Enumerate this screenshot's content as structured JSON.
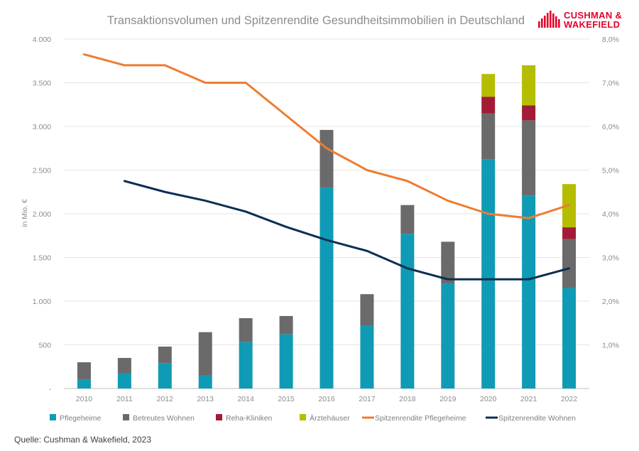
{
  "chart_data": {
    "type": "bar",
    "title": "Transaktionsvolumen und Spitzenrendite Gesundheitsimmobilien in Deutschland",
    "ylabel": "in Mio. €",
    "categories": [
      "2010",
      "2011",
      "2012",
      "2013",
      "2014",
      "2015",
      "2016",
      "2017",
      "2018",
      "2019",
      "2020",
      "2021",
      "2022"
    ],
    "ylim": [
      0,
      4000
    ],
    "y_ticks": [
      "-",
      "500",
      "1.000",
      "1.500",
      "2.000",
      "2.500",
      "3.000",
      "3.500",
      "4.000"
    ],
    "y2lim": [
      0,
      8
    ],
    "y2_ticks": [
      "",
      "1,0%",
      "2,0%",
      "3,0%",
      "4,0%",
      "5,0%",
      "6,0%",
      "7,0%",
      "8,0%"
    ],
    "stacked": true,
    "grid": true,
    "legend_position": "bottom",
    "series": [
      {
        "name": "Pflegeheime",
        "kind": "bar",
        "color": "#0f9bb5",
        "values": [
          100,
          175,
          290,
          150,
          530,
          620,
          2300,
          720,
          1770,
          1200,
          2620,
          2210,
          1150
        ]
      },
      {
        "name": "Betreutes Wohnen",
        "kind": "bar",
        "color": "#6a6a6a",
        "values": [
          200,
          175,
          190,
          495,
          275,
          210,
          660,
          360,
          330,
          480,
          530,
          860,
          560
        ]
      },
      {
        "name": "Reha-Kliniken",
        "kind": "bar",
        "color": "#a21c36",
        "values": [
          0,
          0,
          0,
          0,
          0,
          0,
          0,
          0,
          0,
          0,
          190,
          170,
          135
        ]
      },
      {
        "name": "Ärztehäuser",
        "kind": "bar",
        "color": "#b5bd00",
        "values": [
          0,
          0,
          0,
          0,
          0,
          0,
          0,
          0,
          0,
          0,
          260,
          460,
          495
        ]
      },
      {
        "name": "Spitzenrendite Pflegeheime",
        "kind": "line",
        "axis": "right",
        "color": "#ed7d31",
        "values": [
          7.65,
          7.4,
          7.4,
          7.0,
          7.0,
          6.25,
          5.5,
          5.0,
          4.75,
          4.3,
          4.0,
          3.9,
          4.2
        ]
      },
      {
        "name": "Spitzenrendite Wohnen",
        "kind": "line",
        "axis": "right",
        "color": "#0c2f54",
        "values": [
          null,
          4.75,
          4.5,
          4.3,
          4.05,
          3.7,
          3.4,
          3.15,
          2.75,
          2.5,
          2.5,
          2.5,
          2.75
        ]
      }
    ]
  },
  "logo": {
    "line1": "CUSHMAN &",
    "line2": "WAKEFIELD",
    "color": "#e4002b"
  },
  "source": "Quelle: Cushman & Wakefield, 2023"
}
